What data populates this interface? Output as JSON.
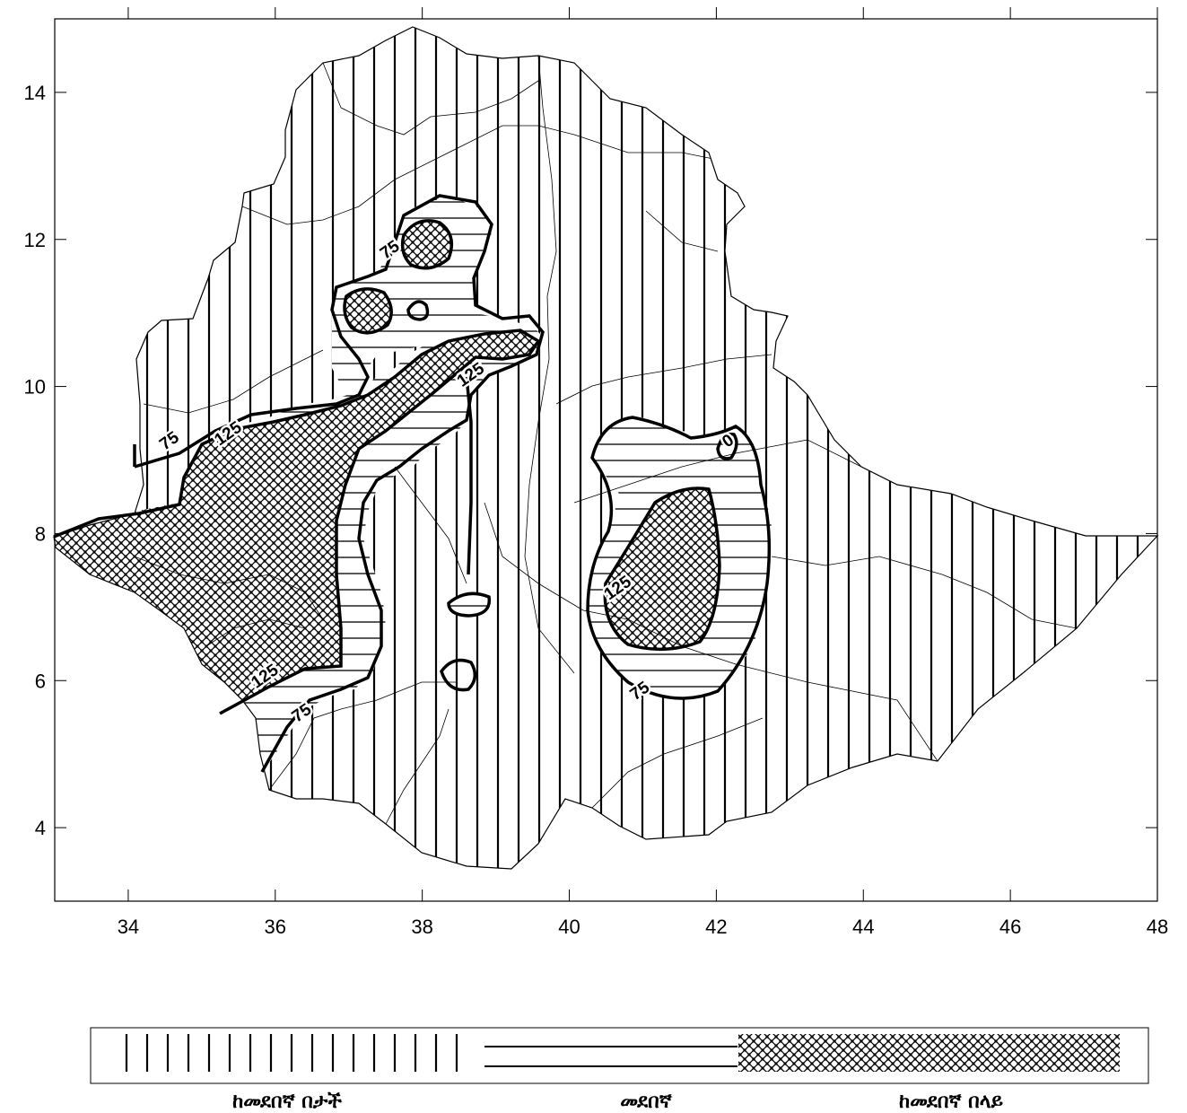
{
  "map": {
    "x_ticks": [
      "34",
      "36",
      "38",
      "40",
      "42",
      "44",
      "46",
      "48"
    ],
    "y_ticks": [
      "14",
      "12",
      "10",
      "8",
      "6",
      "4"
    ],
    "xlim": [
      33,
      48
    ],
    "ylim": [
      3,
      15
    ],
    "contour_levels": [
      "75",
      "125"
    ],
    "contour_labels": [
      {
        "text": "75",
        "lon": 34.6,
        "lat": 9.2
      },
      {
        "text": "125",
        "lon": 35.4,
        "lat": 9.3
      },
      {
        "text": "75",
        "lon": 37.6,
        "lat": 11.8
      },
      {
        "text": "125",
        "lon": 38.7,
        "lat": 10.1
      },
      {
        "text": "125",
        "lon": 35.9,
        "lat": 6.0
      },
      {
        "text": "75",
        "lon": 36.4,
        "lat": 5.5
      },
      {
        "text": "125",
        "lon": 40.7,
        "lat": 7.2
      },
      {
        "text": "75",
        "lon": 41.0,
        "lat": 5.8
      },
      {
        "text": "0",
        "lon": 42.2,
        "lat": 9.2
      }
    ]
  },
  "legend": {
    "below_normal": "ከመደበኛ በታች",
    "normal": "መደበኛ",
    "above_normal": "ከመደበኛ በላይ"
  }
}
